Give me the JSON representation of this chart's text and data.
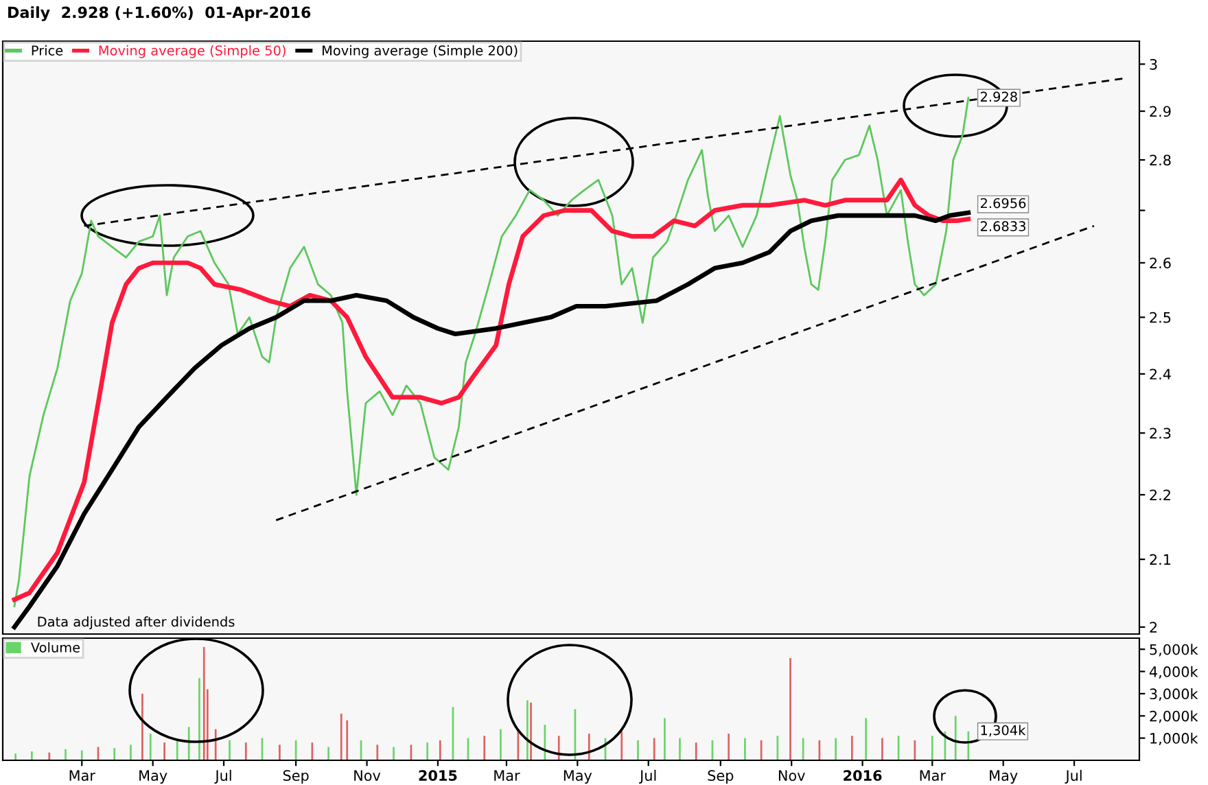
{
  "chart_data": [
    {
      "type": "line",
      "title": "Daily  2.928 (+1.60%)  01-Apr-2016",
      "log": "y",
      "ylim": [
        1.99,
        3.05
      ],
      "yticks": [
        2,
        2.1,
        2.2,
        2.3,
        2.4,
        2.5,
        2.6,
        {
          "value": 2.7,
          "label": null
        },
        2.8,
        2.9,
        3
      ],
      "xlim": [
        "2013-12-23",
        "2016-08-26"
      ],
      "tick_labels": "y",
      "legend": "top left",
      "marker": "none",
      "series": [
        {
          "name": "Price",
          "color": "#5cc85c",
          "x": [
            "2014-01-02",
            "2014-01-06",
            "2014-01-15",
            "2014-01-27",
            "2014-02-08",
            "2014-02-19",
            "2014-03-01",
            "2014-03-09",
            "2014-03-15",
            "2014-03-27",
            "2014-04-08",
            "2014-04-19",
            "2014-05-01",
            "2014-05-07",
            "2014-05-13",
            "2014-05-19",
            "2014-05-31",
            "2014-06-11",
            "2014-06-23",
            "2014-07-05",
            "2014-07-13",
            "2014-07-23",
            "2014-08-03",
            "2014-08-09",
            "2014-08-15",
            "2014-08-27",
            "2014-09-08",
            "2014-09-20",
            "2014-10-01",
            "2014-10-11",
            "2014-10-15",
            "2014-10-23",
            "2014-10-31",
            "2014-11-12",
            "2014-11-23",
            "2014-12-05",
            "2014-12-17",
            "2014-12-29",
            "2015-01-10",
            "2015-01-19",
            "2015-01-25",
            "2015-02-02",
            "2015-02-14",
            "2015-02-25",
            "2015-03-09",
            "2015-03-21",
            "2015-04-02",
            "2015-04-14",
            "2015-04-26",
            "2015-05-07",
            "2015-05-19",
            "2015-05-31",
            "2015-06-08",
            "2015-06-17",
            "2015-06-26",
            "2015-07-05",
            "2015-07-17",
            "2015-07-25",
            "2015-08-04",
            "2015-08-16",
            "2015-08-21",
            "2015-08-27",
            "2015-09-08",
            "2015-09-20",
            "2015-10-02",
            "2015-10-13",
            "2015-10-22",
            "2015-10-31",
            "2015-11-06",
            "2015-11-12",
            "2015-11-18",
            "2015-11-24",
            "2015-11-30",
            "2015-12-06",
            "2015-12-17",
            "2015-12-29",
            "2016-01-07",
            "2016-01-14",
            "2016-01-22",
            "2016-02-03",
            "2016-02-09",
            "2016-02-15",
            "2016-02-23",
            "2016-03-04",
            "2016-03-13",
            "2016-03-19",
            "2016-03-27",
            "2016-04-01"
          ],
          "values": [
            2.03,
            2.07,
            2.23,
            2.33,
            2.41,
            2.53,
            2.58,
            2.68,
            2.65,
            2.63,
            2.61,
            2.64,
            2.65,
            2.69,
            2.54,
            2.61,
            2.65,
            2.66,
            2.6,
            2.56,
            2.47,
            2.5,
            2.43,
            2.42,
            2.5,
            2.59,
            2.63,
            2.56,
            2.54,
            2.49,
            2.37,
            2.2,
            2.35,
            2.37,
            2.33,
            2.38,
            2.35,
            2.26,
            2.24,
            2.31,
            2.42,
            2.47,
            2.56,
            2.65,
            2.69,
            2.74,
            2.72,
            2.69,
            2.72,
            2.74,
            2.76,
            2.69,
            2.56,
            2.59,
            2.49,
            2.61,
            2.64,
            2.69,
            2.76,
            2.82,
            2.73,
            2.66,
            2.69,
            2.63,
            2.69,
            2.8,
            2.89,
            2.77,
            2.72,
            2.63,
            2.56,
            2.55,
            2.64,
            2.76,
            2.8,
            2.81,
            2.87,
            2.8,
            2.69,
            2.74,
            2.64,
            2.56,
            2.54,
            2.56,
            2.66,
            2.8,
            2.85,
            2.928
          ]
        },
        {
          "name": "Moving average (Simple 50)",
          "color": "#ff1a3c",
          "x": [
            "2014-01-02",
            "2014-01-15",
            "2014-02-08",
            "2014-03-03",
            "2014-03-15",
            "2014-03-27",
            "2014-04-08",
            "2014-04-19",
            "2014-05-01",
            "2014-05-09",
            "2014-05-19",
            "2014-05-31",
            "2014-06-11",
            "2014-06-23",
            "2014-07-16",
            "2014-08-09",
            "2014-08-27",
            "2014-09-13",
            "2014-10-01",
            "2014-10-15",
            "2014-10-31",
            "2014-11-23",
            "2014-12-17",
            "2015-01-04",
            "2015-01-19",
            "2015-02-02",
            "2015-02-20",
            "2015-03-03",
            "2015-03-15",
            "2015-04-02",
            "2015-04-20",
            "2015-05-13",
            "2015-05-31",
            "2015-06-17",
            "2015-07-05",
            "2015-07-23",
            "2015-08-10",
            "2015-08-27",
            "2015-09-20",
            "2015-10-13",
            "2015-11-12",
            "2015-11-30",
            "2015-12-17",
            "2016-01-10",
            "2016-01-22",
            "2016-02-03",
            "2016-02-15",
            "2016-02-27",
            "2016-03-10",
            "2016-03-22",
            "2016-04-01"
          ],
          "values": [
            2.04,
            2.05,
            2.11,
            2.22,
            2.35,
            2.49,
            2.56,
            2.59,
            2.6,
            2.6,
            2.6,
            2.6,
            2.59,
            2.56,
            2.55,
            2.53,
            2.52,
            2.54,
            2.53,
            2.5,
            2.43,
            2.36,
            2.36,
            2.35,
            2.36,
            2.4,
            2.45,
            2.56,
            2.65,
            2.69,
            2.7,
            2.7,
            2.66,
            2.65,
            2.65,
            2.68,
            2.67,
            2.7,
            2.71,
            2.71,
            2.72,
            2.71,
            2.72,
            2.72,
            2.72,
            2.76,
            2.71,
            2.69,
            2.68,
            2.68,
            2.6833
          ]
        },
        {
          "name": "Moving average (Simple 200)",
          "color": "#000000",
          "x": [
            "2014-01-02",
            "2014-01-15",
            "2014-02-08",
            "2014-03-03",
            "2014-03-27",
            "2014-04-19",
            "2014-05-13",
            "2014-06-06",
            "2014-06-29",
            "2014-07-23",
            "2014-08-15",
            "2014-09-08",
            "2014-10-01",
            "2014-10-23",
            "2014-11-18",
            "2014-12-11",
            "2015-01-01",
            "2015-01-16",
            "2015-02-20",
            "2015-03-15",
            "2015-04-08",
            "2015-04-30",
            "2015-05-25",
            "2015-07-08",
            "2015-08-04",
            "2015-08-27",
            "2015-09-20",
            "2015-10-13",
            "2015-10-31",
            "2015-11-18",
            "2015-12-11",
            "2016-01-04",
            "2016-01-28",
            "2016-02-15",
            "2016-03-04",
            "2016-03-16",
            "2016-04-01"
          ],
          "values": [
            2.0,
            2.03,
            2.09,
            2.17,
            2.24,
            2.31,
            2.36,
            2.41,
            2.45,
            2.48,
            2.5,
            2.53,
            2.53,
            2.54,
            2.53,
            2.5,
            2.48,
            2.47,
            2.48,
            2.49,
            2.5,
            2.52,
            2.52,
            2.53,
            2.56,
            2.59,
            2.6,
            2.62,
            2.66,
            2.68,
            2.69,
            2.69,
            2.69,
            2.69,
            2.68,
            2.69,
            2.6956
          ]
        },
        {
          "color": "#000000",
          "line_style": "dashed",
          "x": [
            "2014-03-03",
            "2016-08-15"
          ],
          "values": [
            2.67,
            2.97
          ]
        },
        {
          "color": "#000000",
          "line_style": "dashed",
          "x": [
            "2014-08-15",
            "2016-07-18"
          ],
          "values": [
            2.16,
            2.67
          ]
        }
      ],
      "annotations": [
        "Data adjusted after dividends",
        {
          "text": "2.928",
          "x": "2016-04-01",
          "y": 2.928
        },
        {
          "text": "2.6956",
          "x": "2016-04-01",
          "y": 2.6956
        },
        {
          "text": "2.6833",
          "x": "2016-04-01",
          "y": 2.6833
        }
      ]
    },
    {
      "type": "bar",
      "xlim": [
        "2013-12-23",
        "2016-08-26"
      ],
      "xticks": [
        {
          "value": "2014-03-01",
          "label": "Mar"
        },
        {
          "value": "2014-05-01",
          "label": "May"
        },
        {
          "value": "2014-07-01",
          "label": "Jul"
        },
        {
          "value": "2014-09-01",
          "label": "Sep"
        },
        {
          "value": "2014-11-01",
          "label": "Nov"
        },
        {
          "value": "2015-01-01",
          "label": "2015"
        },
        {
          "value": "2015-03-01",
          "label": "Mar"
        },
        {
          "value": "2015-05-01",
          "label": "May"
        },
        {
          "value": "2015-07-01",
          "label": "Jul"
        },
        {
          "value": "2015-09-01",
          "label": "Sep"
        },
        {
          "value": "2015-11-01",
          "label": "Nov"
        },
        {
          "value": "2016-01-01",
          "label": "2016"
        },
        {
          "value": "2016-03-01",
          "label": "Mar"
        },
        {
          "value": "2016-05-01",
          "label": "May"
        },
        {
          "value": "2016-07-01",
          "label": "Jul"
        }
      ],
      "ylim": [
        0,
        5500
      ],
      "yticks": [
        {
          "value": 1000,
          "label": "1,000k"
        },
        {
          "value": 2000,
          "label": "2,000k"
        },
        {
          "value": 3000,
          "label": "3,000k"
        },
        {
          "value": 4000,
          "label": "4,000k"
        },
        {
          "value": 5000,
          "label": "5,000k"
        }
      ],
      "legend": "top left",
      "series": [
        {
          "name": "Volume",
          "color": "#6ad46a",
          "x": [
            "2014-01-03",
            "2014-01-17",
            "2014-02-01",
            "2014-02-15",
            "2014-03-01",
            "2014-03-15",
            "2014-03-29",
            "2014-04-12",
            "2014-04-22",
            "2014-04-29",
            "2014-05-11",
            "2014-05-22",
            "2014-06-01",
            "2014-06-10",
            "2014-06-14",
            "2014-06-17",
            "2014-06-24",
            "2014-07-06",
            "2014-07-20",
            "2014-08-03",
            "2014-08-18",
            "2014-09-01",
            "2014-09-15",
            "2014-09-29",
            "2014-10-10",
            "2014-10-15",
            "2014-10-27",
            "2014-11-10",
            "2014-11-24",
            "2014-12-09",
            "2014-12-23",
            "2015-01-03",
            "2015-01-14",
            "2015-01-27",
            "2015-02-10",
            "2015-02-24",
            "2015-03-11",
            "2015-03-19",
            "2015-03-22",
            "2015-04-03",
            "2015-04-15",
            "2015-04-29",
            "2015-05-11",
            "2015-05-25",
            "2015-06-08",
            "2015-06-22",
            "2015-07-06",
            "2015-07-15",
            "2015-07-28",
            "2015-08-11",
            "2015-08-25",
            "2015-09-08",
            "2015-09-22",
            "2015-10-06",
            "2015-10-20",
            "2015-10-31",
            "2015-11-11",
            "2015-11-25",
            "2015-12-09",
            "2015-12-23",
            "2016-01-04",
            "2016-01-18",
            "2016-02-01",
            "2016-02-15",
            "2016-03-01",
            "2016-03-12",
            "2016-03-21",
            "2016-04-01"
          ],
          "values": [
            300,
            400,
            350,
            500,
            450,
            600,
            550,
            700,
            3000,
            1200,
            800,
            900,
            1500,
            3700,
            5100,
            3200,
            1400,
            900,
            800,
            1000,
            700,
            900,
            800,
            600,
            2100,
            1800,
            900,
            700,
            600,
            700,
            800,
            900,
            2400,
            1000,
            1100,
            1400,
            1300,
            2700,
            2600,
            1600,
            1100,
            2300,
            1200,
            1000,
            1300,
            900,
            1000,
            1900,
            1000,
            800,
            900,
            1200,
            1000,
            900,
            1100,
            4600,
            1000,
            900,
            1000,
            1100,
            1900,
            1000,
            1100,
            900,
            1100,
            1300,
            2000,
            1304
          ],
          "colors": [
            "#6ad46a",
            "#6ad46a",
            "#e06060",
            "#6ad46a",
            "#6ad46a",
            "#e06060",
            "#6ad46a",
            "#6ad46a",
            "#e06060",
            "#6ad46a",
            "#e06060",
            "#6ad46a",
            "#6ad46a",
            "#6ad46a",
            "#e06060",
            "#e06060",
            "#e06060",
            "#6ad46a",
            "#e06060",
            "#6ad46a",
            "#e06060",
            "#6ad46a",
            "#e06060",
            "#6ad46a",
            "#e06060",
            "#e06060",
            "#6ad46a",
            "#e06060",
            "#6ad46a",
            "#e06060",
            "#6ad46a",
            "#e06060",
            "#6ad46a",
            "#6ad46a",
            "#e06060",
            "#6ad46a",
            "#e06060",
            "#6ad46a",
            "#e06060",
            "#6ad46a",
            "#e06060",
            "#6ad46a",
            "#e06060",
            "#6ad46a",
            "#e06060",
            "#6ad46a",
            "#e06060",
            "#6ad46a",
            "#6ad46a",
            "#e06060",
            "#6ad46a",
            "#e06060",
            "#6ad46a",
            "#e06060",
            "#6ad46a",
            "#e06060",
            "#6ad46a",
            "#e06060",
            "#6ad46a",
            "#e06060",
            "#6ad46a",
            "#e06060",
            "#6ad46a",
            "#e06060",
            "#6ad46a",
            "#6ad46a",
            "#6ad46a",
            "#6ad46a"
          ]
        }
      ],
      "annotations": [
        {
          "text": "1,304k",
          "x": "2016-04-01",
          "y": 1304
        }
      ]
    }
  ]
}
